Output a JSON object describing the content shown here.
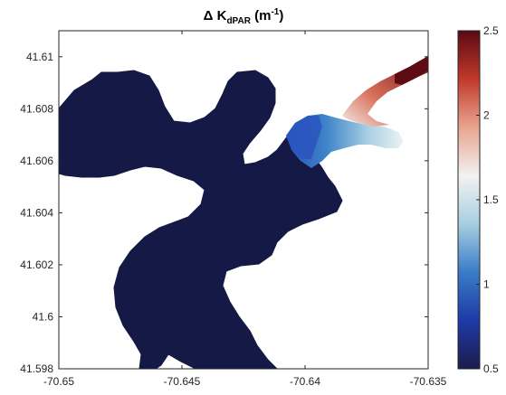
{
  "chart_data": {
    "type": "heatmap",
    "title": {
      "delta": "Δ",
      "symbol": "K",
      "subscript": "dPAR",
      "unit_open": " (m",
      "unit_exp": "-1",
      "unit_close": ")"
    },
    "xlabel": "",
    "ylabel": "",
    "xlim": [
      -70.65,
      -70.635
    ],
    "ylim": [
      41.598,
      41.611
    ],
    "x_ticks": [
      "-70.65",
      "-70.645",
      "-70.64",
      "-70.635"
    ],
    "x_tick_values": [
      -70.65,
      -70.645,
      -70.64,
      -70.635
    ],
    "y_ticks": [
      "41.598",
      "41.6",
      "41.602",
      "41.604",
      "41.606",
      "41.608",
      "41.61"
    ],
    "y_tick_values": [
      41.598,
      41.6,
      41.602,
      41.604,
      41.606,
      41.608,
      41.61
    ],
    "colorbar": {
      "range": [
        0.5,
        2.5
      ],
      "ticks": [
        "0.5",
        "1",
        "1.5",
        "2",
        "2.5"
      ],
      "tick_values": [
        0.5,
        1,
        1.5,
        2,
        2.5
      ],
      "colormap": "blue-white-red diverging",
      "colors": [
        "#1c1c4a",
        "#1e3aa8",
        "#3a7cc8",
        "#a8cfe0",
        "#f2f2f2",
        "#e8a58f",
        "#c0392b",
        "#5a0a12"
      ]
    },
    "background_value": 0.5,
    "regions": [
      {
        "name": "estuary-body",
        "value": 0.5,
        "color": "#141a45"
      },
      {
        "name": "channel-mouth",
        "value": 1.0,
        "color": "#2a5bc4"
      },
      {
        "name": "channel-mid",
        "value": 1.4,
        "color": "#9cc3dd"
      },
      {
        "name": "channel-upper",
        "value": 2.0,
        "color": "#d76a55"
      },
      {
        "name": "river-inflow",
        "value": 2.5,
        "color": "#6e1018"
      }
    ]
  }
}
